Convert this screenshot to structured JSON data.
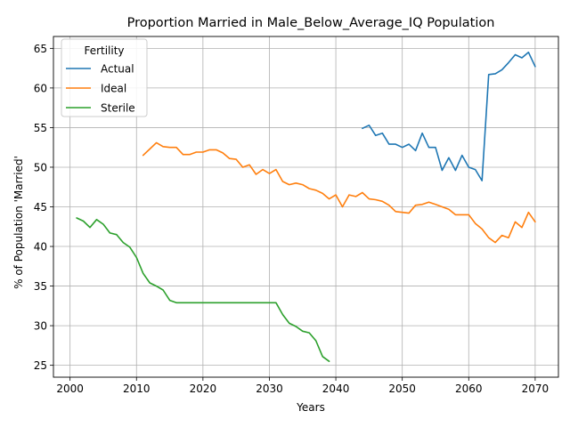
{
  "chart_data": {
    "type": "line",
    "title": "Proportion Married in Male_Below_Average_IQ Population",
    "xlabel": "Years",
    "ylabel": "% of Population 'Married'",
    "xlim": [
      1997.5,
      2073.5
    ],
    "ylim": [
      23.5,
      66.5
    ],
    "xticks": [
      2000,
      2010,
      2020,
      2030,
      2040,
      2050,
      2060,
      2070
    ],
    "yticks": [
      25,
      30,
      35,
      40,
      45,
      50,
      55,
      60,
      65
    ],
    "xtick_labels": [
      "2000",
      "2010",
      "2020",
      "2030",
      "2040",
      "2050",
      "2060",
      "2070"
    ],
    "ytick_labels": [
      "25",
      "30",
      "35",
      "40",
      "45",
      "50",
      "55",
      "60",
      "65"
    ],
    "grid": true,
    "legend": {
      "title": "Fertility",
      "position": "top-left"
    },
    "series": [
      {
        "name": "Actual",
        "color": "#1f77b4",
        "x": [
          2044,
          2045,
          2046,
          2047,
          2048,
          2049,
          2050,
          2051,
          2052,
          2053,
          2054,
          2055,
          2056,
          2057,
          2058,
          2059,
          2060,
          2061,
          2062,
          2063,
          2064,
          2065,
          2066,
          2067,
          2068,
          2069,
          2070
        ],
        "values": [
          54.9,
          55.3,
          54.0,
          54.3,
          52.9,
          52.9,
          52.5,
          52.9,
          52.1,
          54.3,
          52.5,
          52.5,
          49.6,
          51.2,
          49.6,
          51.5,
          50.0,
          49.7,
          48.3,
          61.7,
          61.8,
          62.3,
          63.2,
          64.2,
          63.8,
          64.5,
          62.7
        ]
      },
      {
        "name": "Ideal",
        "color": "#ff7f0e",
        "x": [
          2011,
          2012,
          2013,
          2014,
          2015,
          2016,
          2017,
          2018,
          2019,
          2020,
          2021,
          2022,
          2023,
          2024,
          2025,
          2026,
          2027,
          2028,
          2029,
          2030,
          2031,
          2032,
          2033,
          2034,
          2035,
          2036,
          2037,
          2038,
          2039,
          2040,
          2041,
          2042,
          2043,
          2044,
          2045,
          2046,
          2047,
          2048,
          2049,
          2050,
          2051,
          2052,
          2053,
          2054,
          2055,
          2056,
          2057,
          2058,
          2059,
          2060,
          2061,
          2062,
          2063,
          2064,
          2065,
          2066,
          2067,
          2068,
          2069,
          2070
        ],
        "values": [
          51.5,
          52.3,
          53.1,
          52.6,
          52.5,
          52.5,
          51.6,
          51.6,
          51.9,
          51.9,
          52.2,
          52.2,
          51.8,
          51.1,
          51.0,
          50.0,
          50.3,
          49.1,
          49.7,
          49.2,
          49.7,
          48.2,
          47.8,
          48.0,
          47.8,
          47.3,
          47.1,
          46.7,
          46.0,
          46.5,
          45.0,
          46.5,
          46.3,
          46.8,
          46.0,
          45.9,
          45.7,
          45.2,
          44.4,
          44.3,
          44.2,
          45.2,
          45.3,
          45.6,
          45.3,
          45.0,
          44.7,
          44.0,
          44.0,
          44.0,
          42.9,
          42.2,
          41.1,
          40.5,
          41.4,
          41.1,
          43.1,
          42.4,
          44.3,
          43.1
        ]
      },
      {
        "name": "Sterile",
        "color": "#2ca02c",
        "x": [
          2001,
          2002,
          2003,
          2004,
          2005,
          2006,
          2007,
          2008,
          2009,
          2010,
          2011,
          2012,
          2013,
          2014,
          2015,
          2016,
          2017,
          2018,
          2019,
          2020,
          2021,
          2022,
          2023,
          2024,
          2025,
          2026,
          2027,
          2028,
          2029,
          2030,
          2031,
          2032,
          2033,
          2034,
          2035,
          2036,
          2037,
          2038,
          2039
        ],
        "values": [
          43.6,
          43.2,
          42.4,
          43.4,
          42.8,
          41.7,
          41.5,
          40.5,
          39.9,
          38.6,
          36.6,
          35.4,
          35.0,
          34.5,
          33.2,
          32.9,
          32.9,
          32.9,
          32.9,
          32.9,
          32.9,
          32.9,
          32.9,
          32.9,
          32.9,
          32.9,
          32.9,
          32.9,
          32.9,
          32.9,
          32.9,
          31.4,
          30.3,
          29.9,
          29.3,
          29.1,
          28.1,
          26.1,
          25.5
        ]
      }
    ]
  }
}
